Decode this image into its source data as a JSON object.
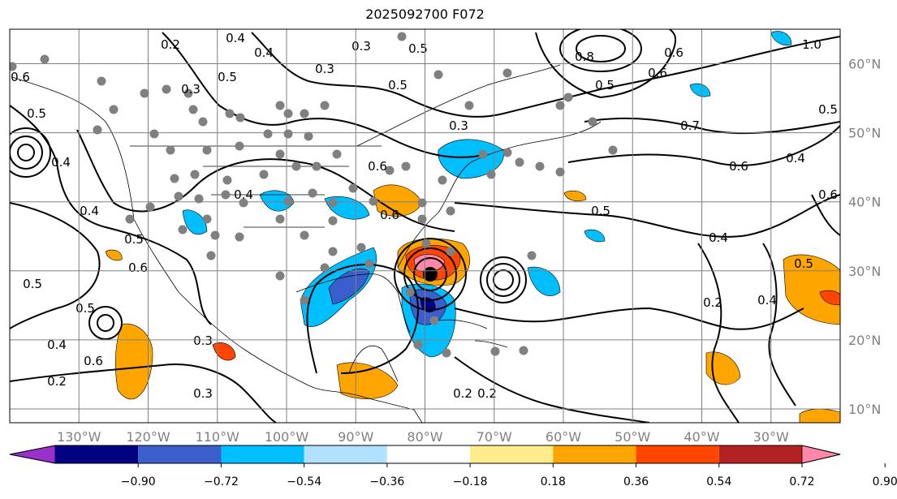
{
  "title": "2025092700 F072",
  "map": {
    "extent_lon": [
      -140,
      -20
    ],
    "extent_lat": [
      8,
      65
    ],
    "lon_ticks": [
      {
        "value": -130,
        "label": "130°W"
      },
      {
        "value": -120,
        "label": "120°W"
      },
      {
        "value": -110,
        "label": "110°W"
      },
      {
        "value": -100,
        "label": "100°W"
      },
      {
        "value": -90,
        "label": "90°W"
      },
      {
        "value": -80,
        "label": "80°W"
      },
      {
        "value": -70,
        "label": "70°W"
      },
      {
        "value": -60,
        "label": "60°W"
      },
      {
        "value": -50,
        "label": "50°W"
      },
      {
        "value": -40,
        "label": "40°W"
      },
      {
        "value": -30,
        "label": "30°W"
      }
    ],
    "lat_ticks": [
      {
        "value": 60,
        "label": "60°N"
      },
      {
        "value": 50,
        "label": "50°N"
      },
      {
        "value": 40,
        "label": "40°N"
      },
      {
        "value": 30,
        "label": "30°N"
      },
      {
        "value": 20,
        "label": "20°N"
      },
      {
        "value": 10,
        "label": "10°N"
      }
    ],
    "contour_labels": [
      "0.4",
      "0.5",
      "0.2",
      "0.4",
      "0.5",
      "0.6",
      "0.3",
      "0.5",
      "0.4",
      "0.3",
      "0.5",
      "0.3",
      "0.6",
      "0.5",
      "0.6",
      "0.7",
      "0.5",
      "0.6",
      "0.4",
      "0.6",
      "0.5",
      "0.4",
      "0.5",
      "0.4",
      "0.2",
      "0.5",
      "0.4",
      "0.6",
      "0.5",
      "0.4",
      "0.2",
      "0.3",
      "0.3",
      "0.2",
      "0.4",
      "0.6",
      "0.5",
      "0.3",
      "0.2",
      "0.8",
      "0.6",
      "1.0",
      "0.6"
    ]
  },
  "colorbar": {
    "colors": [
      "#9932cc",
      "#000080",
      "#3a5fcd",
      "#00bfff",
      "#b0e2ff",
      "#ffffff",
      "#ffec8b",
      "#ffa500",
      "#ff4500",
      "#b22222",
      "#ff88aa"
    ],
    "tick_labels": [
      "−0.90",
      "−0.72",
      "−0.54",
      "−0.36",
      "−0.18",
      "0.18",
      "0.36",
      "0.54",
      "0.72",
      "0.90"
    ]
  }
}
